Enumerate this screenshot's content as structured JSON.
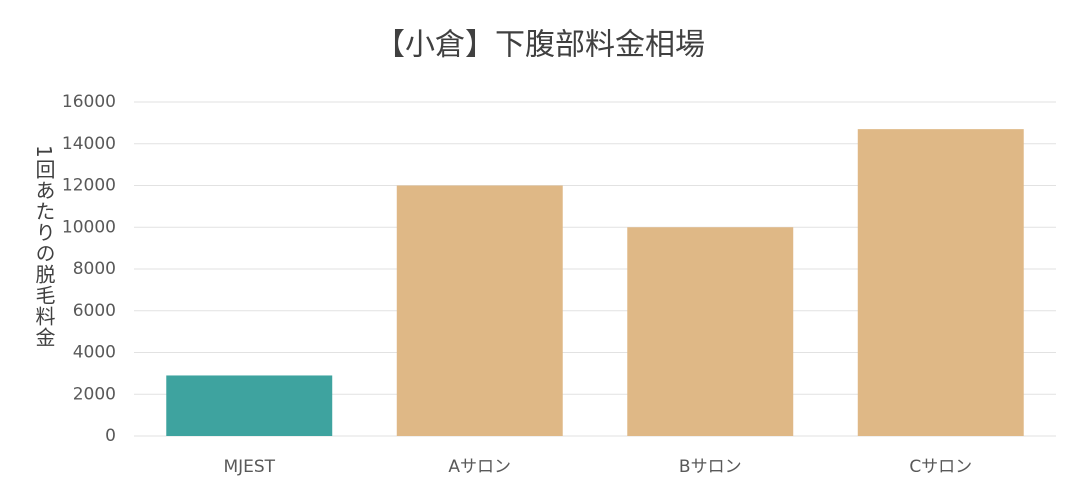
{
  "chart_data": {
    "type": "bar",
    "title": "【小倉】下腹部料金相場",
    "y_label": "1回あたりの脱毛料金",
    "categories": [
      "MJEST",
      "Aサロン",
      "Bサロン",
      "Cサロン"
    ],
    "values": [
      2900,
      12000,
      10000,
      14700
    ],
    "colors": [
      "#3ea39f",
      "#dfb886",
      "#dfb886",
      "#dfb886"
    ],
    "ylim": [
      0,
      16000
    ],
    "yticks": [
      0,
      2000,
      4000,
      6000,
      8000,
      10000,
      12000,
      14000,
      16000
    ],
    "grid": true
  }
}
